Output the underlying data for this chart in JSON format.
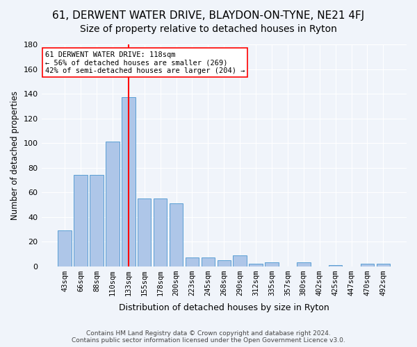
{
  "title": "61, DERWENT WATER DRIVE, BLAYDON-ON-TYNE, NE21 4FJ",
  "subtitle": "Size of property relative to detached houses in Ryton",
  "xlabel": "Distribution of detached houses by size in Ryton",
  "ylabel": "Number of detached properties",
  "categories": [
    "43sqm",
    "66sqm",
    "88sqm",
    "110sqm",
    "133sqm",
    "155sqm",
    "178sqm",
    "200sqm",
    "223sqm",
    "245sqm",
    "268sqm",
    "290sqm",
    "312sqm",
    "335sqm",
    "357sqm",
    "380sqm",
    "402sqm",
    "425sqm",
    "447sqm",
    "470sqm",
    "492sqm"
  ],
  "values": [
    29,
    74,
    74,
    101,
    137,
    55,
    55,
    51,
    7,
    7,
    5,
    9,
    2,
    3,
    0,
    3,
    0,
    1,
    0,
    2,
    2
  ],
  "bar_color": "#aec6e8",
  "bar_edge_color": "#5a9fd4",
  "ylim": [
    0,
    180
  ],
  "yticks": [
    0,
    20,
    40,
    60,
    80,
    100,
    120,
    140,
    160,
    180
  ],
  "vline_x": 4,
  "vline_color": "red",
  "annotation_text": "61 DERWENT WATER DRIVE: 118sqm\n← 56% of detached houses are smaller (269)\n42% of semi-detached houses are larger (204) →",
  "annotation_box_color": "white",
  "annotation_box_edge": "red",
  "footer_line1": "Contains HM Land Registry data © Crown copyright and database right 2024.",
  "footer_line2": "Contains public sector information licensed under the Open Government Licence v3.0.",
  "bg_color": "#f0f4fa",
  "grid_color": "#ffffff",
  "title_fontsize": 11,
  "subtitle_fontsize": 10
}
